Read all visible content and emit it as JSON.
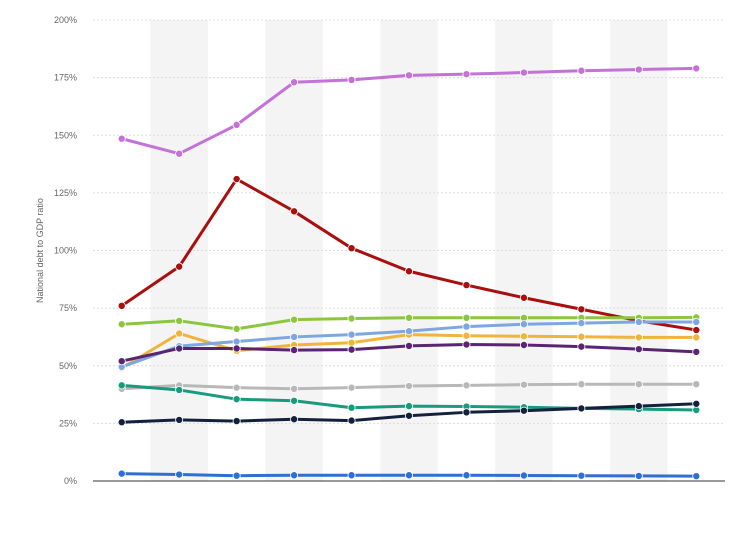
{
  "chart_data": {
    "type": "line",
    "title": "",
    "xlabel": "",
    "ylabel": "National debt to GDP ratio",
    "ylim": [
      0,
      200
    ],
    "yticks": [
      0,
      25,
      50,
      75,
      100,
      125,
      150,
      175,
      200
    ],
    "ytick_labels": [
      "0%",
      "25%",
      "50%",
      "75%",
      "100%",
      "125%",
      "150%",
      "175%",
      "200%"
    ],
    "grid": true,
    "legend": "none",
    "x_count": 11,
    "series": [
      {
        "color": "#c471d8",
        "values": [
          148.5,
          142,
          154.5,
          173,
          174,
          176,
          176.5,
          177.2,
          178,
          178.5,
          179
        ]
      },
      {
        "color": "#a80f0f",
        "values": [
          76,
          93,
          131,
          117,
          101,
          91,
          85,
          79.5,
          74.5,
          69.5,
          65.5
        ]
      },
      {
        "color": "#8cc63e",
        "values": [
          68,
          69.5,
          66,
          70,
          70.5,
          70.8,
          70.8,
          70.8,
          70.8,
          70.8,
          71
        ]
      },
      {
        "color": "#f0b43c",
        "values": [
          49,
          64,
          56.5,
          59,
          60,
          63.5,
          63,
          62.8,
          62.6,
          62.3,
          62.3
        ]
      },
      {
        "color": "#7ea6e0",
        "values": [
          49.5,
          58.5,
          60.5,
          62.5,
          63.5,
          65,
          67,
          68,
          68.5,
          69,
          69
        ]
      },
      {
        "color": "#5a2472",
        "values": [
          52,
          57.5,
          57.5,
          56.8,
          57,
          58.6,
          59.2,
          59,
          58.3,
          57.2,
          56
        ]
      },
      {
        "color": "#b8b8b8",
        "values": [
          40,
          41.5,
          40.5,
          40,
          40.5,
          41.2,
          41.5,
          41.8,
          42,
          42,
          42
        ]
      },
      {
        "color": "#179a7e",
        "values": [
          41.5,
          39.5,
          35.5,
          34.8,
          31.8,
          32.5,
          32.3,
          32,
          31.5,
          31.2,
          30.8
        ]
      },
      {
        "color": "#14213d",
        "values": [
          25.5,
          26.5,
          26,
          26.8,
          26.2,
          28.3,
          29.8,
          30.5,
          31.5,
          32.5,
          33.5
        ]
      },
      {
        "color": "#2f6fd4",
        "values": [
          3.2,
          2.8,
          2.3,
          2.5,
          2.5,
          2.5,
          2.5,
          2.4,
          2.3,
          2.2,
          2.1
        ]
      }
    ]
  }
}
